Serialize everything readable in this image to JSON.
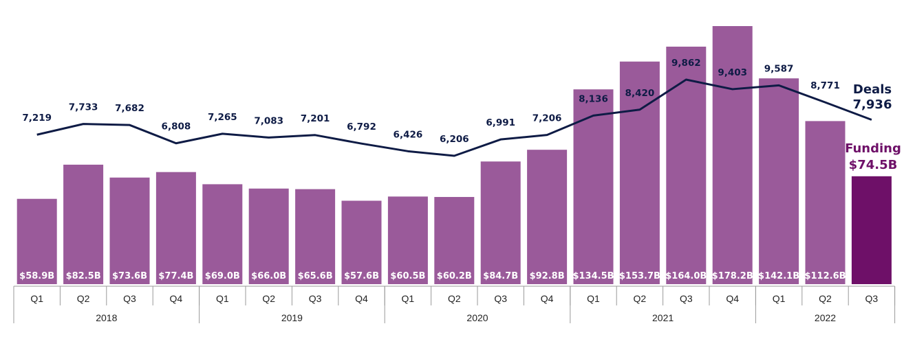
{
  "colors": {
    "bar": "#9a5a9a",
    "bar_highlight": "#6e1068",
    "line": "#0e1b45",
    "axis": "#999999"
  },
  "chart_data": {
    "type": "bar",
    "categories": [
      "Q1",
      "Q2",
      "Q3",
      "Q4",
      "Q1",
      "Q2",
      "Q3",
      "Q4",
      "Q1",
      "Q2",
      "Q3",
      "Q4",
      "Q1",
      "Q2",
      "Q3",
      "Q4",
      "Q1",
      "Q2",
      "Q3"
    ],
    "years": [
      {
        "label": "2018",
        "quarters": 4
      },
      {
        "label": "2019",
        "quarters": 4
      },
      {
        "label": "2020",
        "quarters": 4
      },
      {
        "label": "2021",
        "quarters": 4
      },
      {
        "label": "2022",
        "quarters": 3
      }
    ],
    "series": [
      {
        "values": [
          58.9,
          82.5,
          73.6,
          77.4,
          69.0,
          66.0,
          65.6,
          57.6,
          60.5,
          60.2,
          84.7,
          92.8,
          134.5,
          153.7,
          164.0,
          178.2,
          142.1,
          112.6,
          74.5
        ],
        "labels": [
          "$58.9B",
          "$82.5B",
          "$73.6B",
          "$77.4B",
          "$69.0B",
          "$66.0B",
          "$65.6B",
          "$57.6B",
          "$60.5B",
          "$60.2B",
          "$84.7B",
          "$92.8B",
          "$134.5B",
          "$153.7B",
          "$164.0B",
          "$178.2B",
          "$142.1B",
          "$112.6B",
          ""
        ]
      },
      {
        "values": [
          7219,
          7733,
          7682,
          6808,
          7265,
          7083,
          7201,
          6792,
          6426,
          6206,
          6991,
          7206,
          8136,
          8420,
          9862,
          9403,
          9587,
          8771,
          7936
        ],
        "labels": [
          "7,219",
          "7,733",
          "7,682",
          "6,808",
          "7,265",
          "7,083",
          "7,201",
          "6,792",
          "6,426",
          "6,206",
          "6,991",
          "7,206",
          "8,136",
          "8,420",
          "9,862",
          "9,403",
          "9,587",
          "8,771",
          ""
        ]
      }
    ],
    "callouts": {
      "deals_name": "Deals",
      "deals_value": "7,936",
      "funding_name": "Funding",
      "funding_value": "$74.5B"
    },
    "highlight_index": 18
  }
}
